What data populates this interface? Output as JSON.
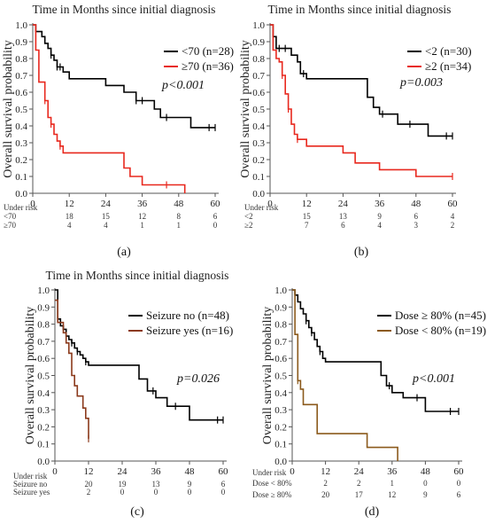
{
  "chart_data": [
    {
      "type": "line",
      "panel_label": "(a)",
      "title": "Time in Months since initial diagnosis",
      "ylabel": "Overall survival probability",
      "xlabel": "",
      "xlim": [
        0,
        60
      ],
      "ylim": [
        0,
        1
      ],
      "xticks": [
        0,
        12,
        24,
        36,
        48,
        60
      ],
      "yticks": [
        "0.0",
        "0.1",
        "0.2",
        "0.3",
        "0.4",
        "0.5",
        "0.6",
        "0.7",
        "0.8",
        "0.9",
        "1.0"
      ],
      "pvalue": "p<0.001",
      "legend_position": "right",
      "series": [
        {
          "name": "<70 (n=28)",
          "color": "#000000",
          "x": [
            0,
            1,
            2,
            3,
            4,
            5,
            6,
            7,
            8,
            9,
            10,
            12,
            18,
            24,
            30,
            34,
            36,
            40,
            42,
            48,
            52,
            60
          ],
          "y": [
            1.0,
            0.96,
            0.96,
            0.93,
            0.89,
            0.86,
            0.82,
            0.79,
            0.75,
            0.75,
            0.72,
            0.68,
            0.68,
            0.64,
            0.6,
            0.55,
            0.55,
            0.5,
            0.45,
            0.45,
            0.39,
            0.39
          ],
          "censor_x": [
            6,
            8,
            9,
            34,
            36,
            44,
            58,
            60
          ]
        },
        {
          "name": "≥70 (n=36)",
          "color": "#e8281e",
          "x": [
            0,
            1,
            2,
            4,
            5,
            6,
            7,
            8,
            9,
            10,
            12,
            30,
            32,
            36,
            42,
            48,
            50
          ],
          "y": [
            1.0,
            0.85,
            0.66,
            0.55,
            0.45,
            0.41,
            0.35,
            0.31,
            0.28,
            0.24,
            0.24,
            0.15,
            0.1,
            0.05,
            0.05,
            0.05,
            0.0
          ],
          "censor_x": [
            4,
            6,
            9,
            44
          ]
        }
      ],
      "risk_table": {
        "label": "Under risk",
        "rows": [
          {
            "label": "<70",
            "values": [
              "",
              "18",
              "15",
              "12",
              "8",
              "6"
            ]
          },
          {
            "label": "≥70",
            "values": [
              "",
              "4",
              "4",
              "1",
              "1",
              "0"
            ]
          }
        ]
      }
    },
    {
      "type": "line",
      "panel_label": "(b)",
      "title": "Time in Months since initial diagnosis",
      "ylabel": "Overall survival probability",
      "xlabel": "",
      "xlim": [
        0,
        60
      ],
      "ylim": [
        0,
        1
      ],
      "xticks": [
        0,
        12,
        24,
        36,
        48,
        60
      ],
      "yticks": [
        "0.0",
        "0.1",
        "0.2",
        "0.3",
        "0.4",
        "0.5",
        "0.6",
        "0.7",
        "0.8",
        "0.9",
        "1.0"
      ],
      "pvalue": "p=0.003",
      "legend_position": "right",
      "series": [
        {
          "name": "<2 (n=30)",
          "color": "#000000",
          "x": [
            0,
            1,
            2,
            6,
            7,
            9,
            10,
            12,
            30,
            32,
            34,
            36,
            42,
            48,
            52,
            60
          ],
          "y": [
            1.0,
            0.93,
            0.86,
            0.86,
            0.82,
            0.78,
            0.71,
            0.68,
            0.68,
            0.57,
            0.51,
            0.47,
            0.41,
            0.41,
            0.34,
            0.34
          ],
          "censor_x": [
            3,
            5,
            11,
            37,
            46,
            58,
            60
          ]
        },
        {
          "name": "≥2 (n=34)",
          "color": "#e8281e",
          "x": [
            0,
            1,
            2,
            3,
            4,
            5,
            6,
            7,
            8,
            9,
            12,
            24,
            28,
            36,
            48,
            60
          ],
          "y": [
            1.0,
            0.85,
            0.8,
            0.78,
            0.7,
            0.59,
            0.5,
            0.41,
            0.35,
            0.32,
            0.28,
            0.24,
            0.18,
            0.14,
            0.1,
            0.1
          ],
          "censor_x": [
            4,
            6,
            9,
            60
          ]
        }
      ],
      "risk_table": {
        "label": "Under risk",
        "rows": [
          {
            "label": "<2",
            "values": [
              "",
              "15",
              "13",
              "9",
              "6",
              "4"
            ]
          },
          {
            "label": "≥2",
            "values": [
              "",
              "7",
              "6",
              "4",
              "3",
              "2"
            ]
          }
        ]
      }
    },
    {
      "type": "line",
      "panel_label": "(c)",
      "title": "Time in Months since initial diagnosis",
      "ylabel": "Overall survival probability",
      "xlabel": "",
      "xlim": [
        0,
        60
      ],
      "ylim": [
        0,
        1
      ],
      "xticks": [
        0,
        12,
        24,
        36,
        48,
        60
      ],
      "yticks": [
        "0.0",
        "0.1",
        "0.2",
        "0.3",
        "0.4",
        "0.5",
        "0.6",
        "0.7",
        "0.8",
        "0.9",
        "1.0"
      ],
      "pvalue": "p=0.026",
      "legend_position": "right",
      "series": [
        {
          "name": "Seizure no (n=48)",
          "color": "#000000",
          "x": [
            0,
            1,
            2,
            3,
            4,
            5,
            6,
            7,
            8,
            9,
            10,
            11,
            12,
            18,
            24,
            30,
            33,
            36,
            40,
            48,
            60
          ],
          "y": [
            1.0,
            0.83,
            0.79,
            0.77,
            0.73,
            0.71,
            0.69,
            0.66,
            0.64,
            0.62,
            0.6,
            0.58,
            0.56,
            0.56,
            0.56,
            0.48,
            0.41,
            0.37,
            0.32,
            0.24,
            0.24
          ],
          "censor_x": [
            6,
            8,
            11,
            35,
            43,
            58,
            60
          ]
        },
        {
          "name": "Seizure yes (n=16)",
          "color": "#8b3a1c",
          "x": [
            0,
            1,
            2,
            3,
            4,
            5,
            6,
            7,
            8,
            9,
            10,
            11,
            12
          ],
          "y": [
            0.94,
            0.81,
            0.81,
            0.75,
            0.69,
            0.63,
            0.5,
            0.44,
            0.38,
            0.38,
            0.31,
            0.25,
            0.13
          ],
          "censor_x": [
            12
          ]
        }
      ],
      "risk_table": {
        "label": "Under risk",
        "rows": [
          {
            "label": "Seizure no",
            "values": [
              "",
              "20",
              "19",
              "13",
              "9",
              "6"
            ]
          },
          {
            "label": "Seizure yes",
            "values": [
              "",
              "2",
              "0",
              "0",
              "0",
              "0"
            ]
          }
        ]
      }
    },
    {
      "type": "line",
      "panel_label": "(d)",
      "title": "",
      "ylabel": "Overall survival probability",
      "xlabel": "",
      "xlim": [
        0,
        60
      ],
      "ylim": [
        0,
        1
      ],
      "xticks": [
        0,
        12,
        24,
        36,
        48,
        60
      ],
      "yticks": [
        "0.0",
        "0.1",
        "0.2",
        "0.3",
        "0.4",
        "0.5",
        "0.6",
        "0.7",
        "0.8",
        "0.9",
        "1.0"
      ],
      "pvalue": "p<0.001",
      "legend_position": "right",
      "series": [
        {
          "name": "Dose ≥ 80% (n=45)",
          "color": "#000000",
          "x": [
            0,
            1,
            2,
            3,
            4,
            5,
            6,
            7,
            8,
            9,
            10,
            11,
            12,
            30,
            32,
            34,
            36,
            40,
            48,
            60
          ],
          "y": [
            1.0,
            0.97,
            0.93,
            0.89,
            0.86,
            0.82,
            0.78,
            0.75,
            0.71,
            0.67,
            0.64,
            0.6,
            0.58,
            0.58,
            0.5,
            0.44,
            0.4,
            0.37,
            0.29,
            0.29
          ],
          "censor_x": [
            5,
            7,
            10,
            35,
            45,
            57,
            60
          ]
        },
        {
          "name": "Dose < 80% (n=19)",
          "color": "#8b5a1c",
          "x": [
            0,
            1,
            2,
            3,
            4,
            6,
            9,
            27,
            38
          ],
          "y": [
            1.0,
            0.74,
            0.47,
            0.42,
            0.33,
            0.33,
            0.16,
            0.08,
            0.0
          ],
          "censor_x": [
            2
          ]
        }
      ],
      "risk_table": {
        "label": "Under risk",
        "rows": [
          {
            "label": "Dose < 80%",
            "values": [
              "",
              "2",
              "2",
              "1",
              "0",
              "0"
            ]
          },
          {
            "label": "Dose ≥ 80%",
            "values": [
              "",
              "20",
              "17",
              "12",
              "9",
              "6"
            ]
          }
        ]
      }
    }
  ]
}
